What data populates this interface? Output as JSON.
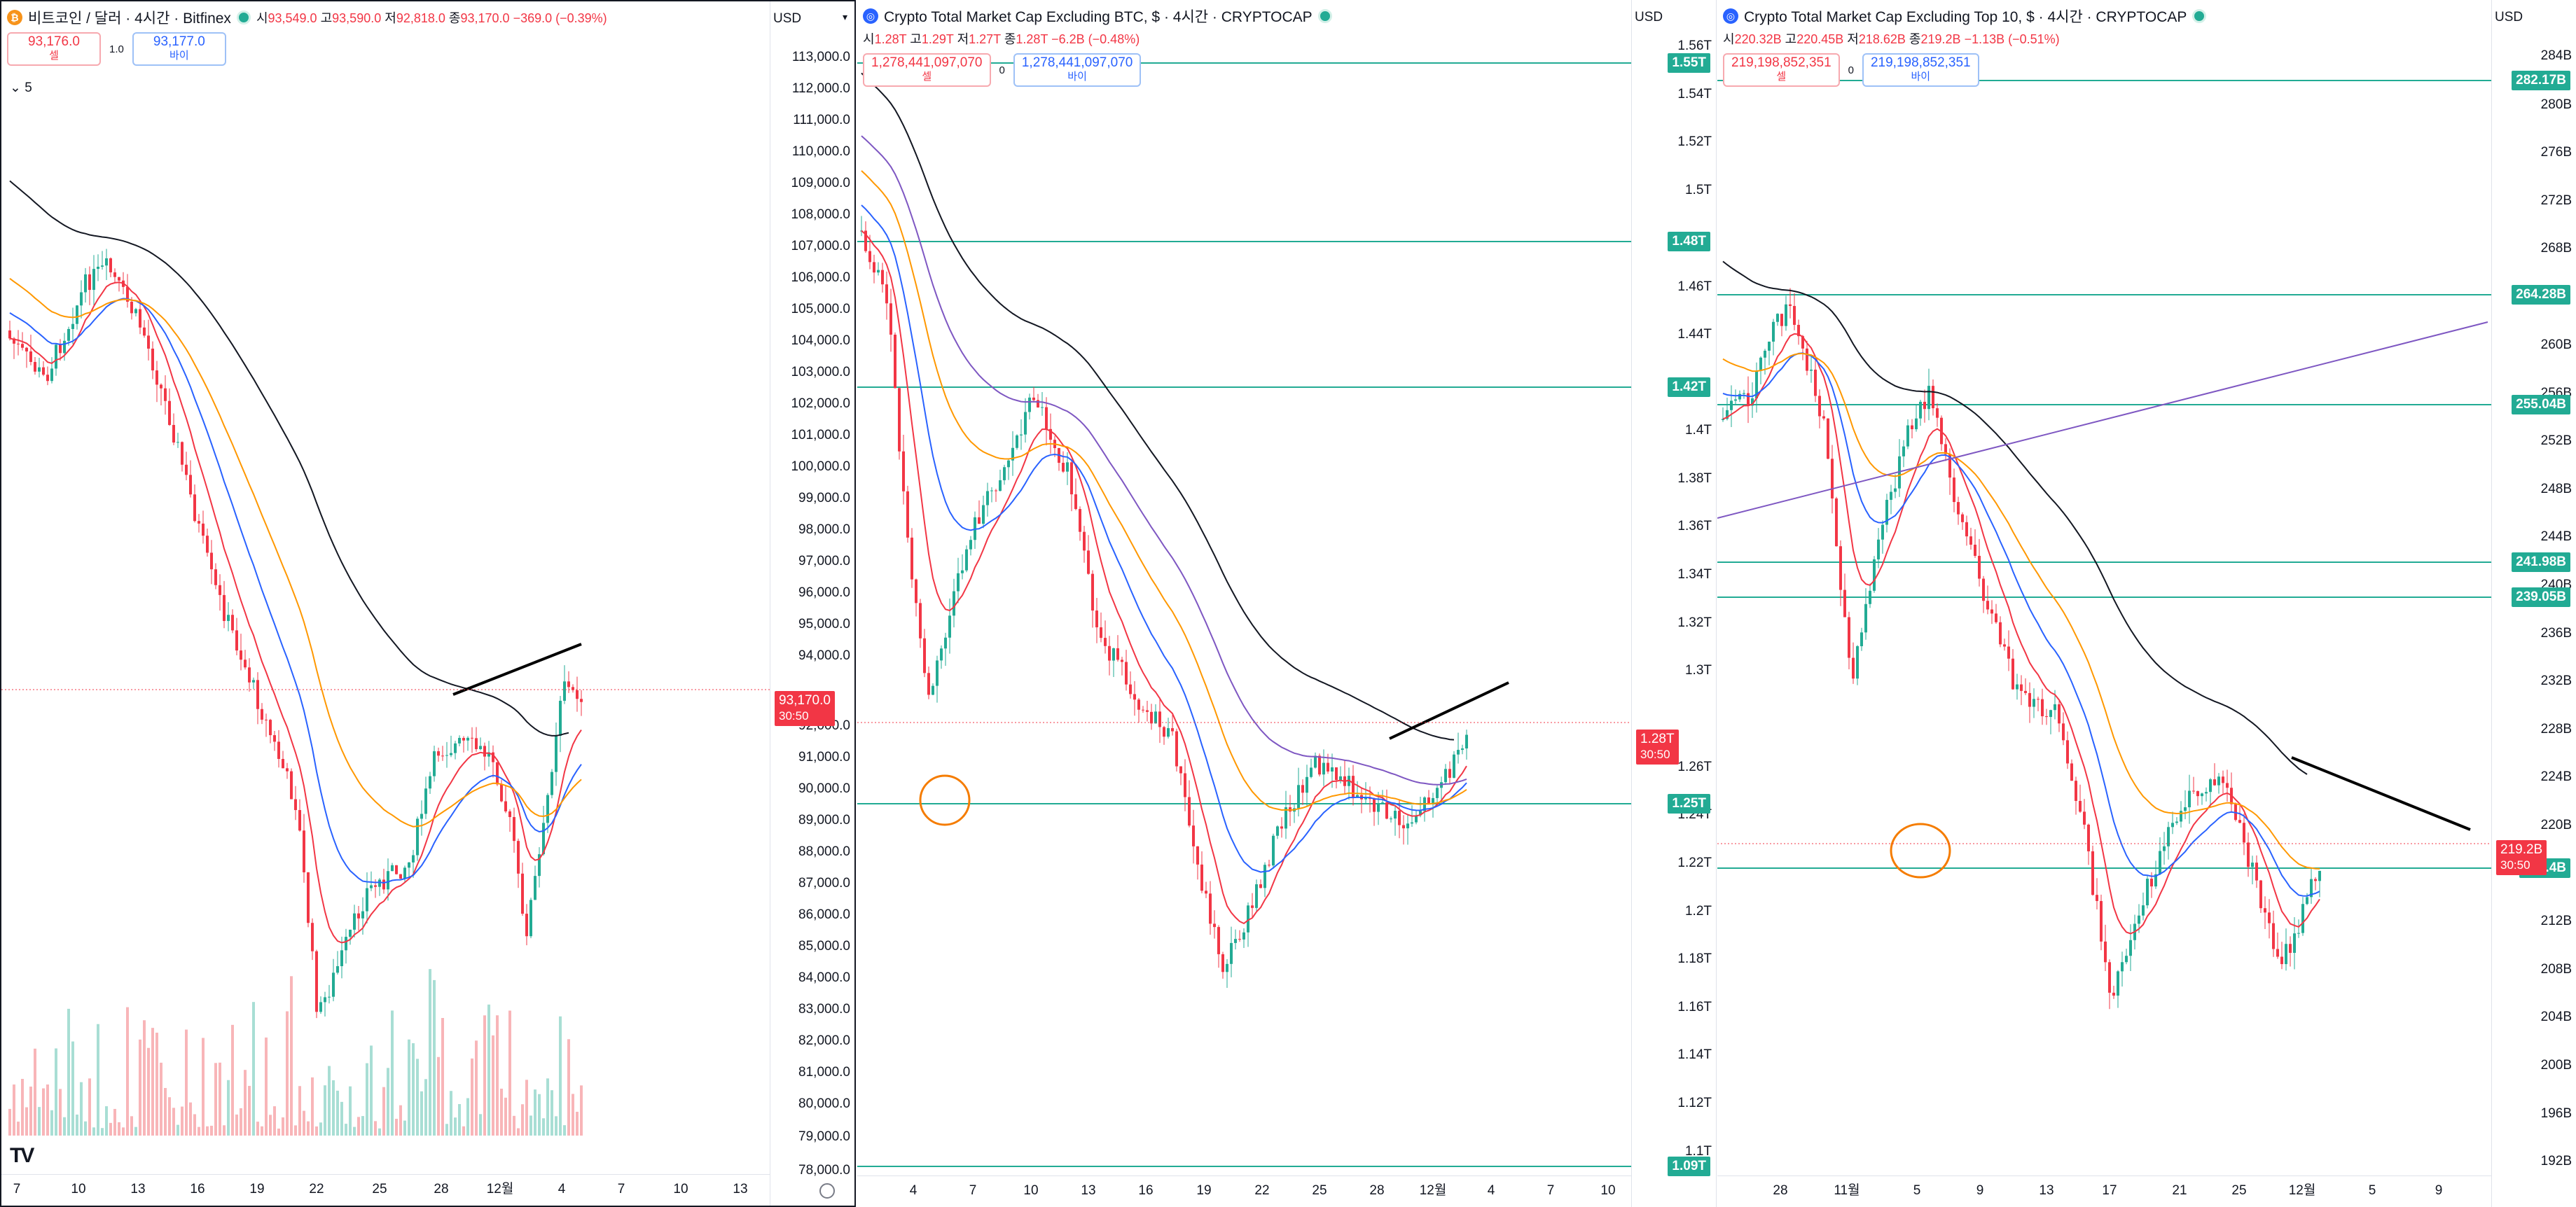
{
  "colors": {
    "up": "#22ab94",
    "down": "#f23645",
    "ema_red": "#f23645",
    "ema_blue": "#2962ff",
    "ema_orange": "#ff9800",
    "ema_black": "#131722",
    "ema_purple": "#7e57c2",
    "level": "#22ab94",
    "marker": "#f57c00"
  },
  "panels": [
    {
      "symbol_icon": "bitcoin-icon",
      "title": "비트코인 / 달러 · 4시간 · Bitfinex",
      "ohlc": {
        "o_label": "시",
        "o": "93,549.0",
        "h_label": "고",
        "h": "93,590.0",
        "l_label": "저",
        "l": "92,818.0",
        "c_label": "종",
        "c": "93,170.0",
        "change": "−369.0 (−0.39%)"
      },
      "sell": {
        "price": "93,176.0",
        "label": "셀"
      },
      "spread": "1.0",
      "buy": {
        "price": "93,177.0",
        "label": "바이"
      },
      "collapse_label": "5",
      "currency": "USD",
      "y_ticks": [
        "113,000.0",
        "112,000.0",
        "111,000.0",
        "110,000.0",
        "109,000.0",
        "108,000.0",
        "107,000.0",
        "106,000.0",
        "105,000.0",
        "104,000.0",
        "103,000.0",
        "102,000.0",
        "101,000.0",
        "100,000.0",
        "99,000.0",
        "98,000.0",
        "97,000.0",
        "96,000.0",
        "95,000.0",
        "94,000.0",
        "92,000.0",
        "91,000.0",
        "90,000.0",
        "89,000.0",
        "88,000.0",
        "87,000.0",
        "86,000.0",
        "85,000.0",
        "84,000.0",
        "83,000.0",
        "82,000.0",
        "81,000.0",
        "80,000.0",
        "79,000.0",
        "78,000.0"
      ],
      "price_tag": {
        "price": "93,170.0",
        "timer": "30:50"
      },
      "x_ticks": [
        "7",
        "10",
        "13",
        "16",
        "19",
        "22",
        "25",
        "28",
        "12월",
        "4",
        "7",
        "10",
        "13"
      ]
    },
    {
      "symbol_icon": "cryptocap-icon",
      "title": "Crypto Total Market Cap Excluding BTC, $ · 4시간 · CRYPTOCAP",
      "ohlc": {
        "o_label": "시",
        "o": "1.28T",
        "h_label": "고",
        "h": "1.29T",
        "l_label": "저",
        "l": "1.27T",
        "c_label": "종",
        "c": "1.28T",
        "change": "−6.2B (−0.48%)"
      },
      "sell": {
        "price": "1,278,441,097,070",
        "label": "셀"
      },
      "spread": "0",
      "buy": {
        "price": "1,278,441,097,070",
        "label": "바이"
      },
      "currency": "USD",
      "y_ticks": [
        "1.56T",
        "1.54T",
        "1.52T",
        "1.5T",
        "1.46T",
        "1.44T",
        "1.4T",
        "1.38T",
        "1.36T",
        "1.34T",
        "1.32T",
        "1.3T",
        "1.26T",
        "1.24T",
        "1.22T",
        "1.2T",
        "1.18T",
        "1.16T",
        "1.14T",
        "1.12T",
        "1.1T"
      ],
      "levels": [
        "1.55T",
        "1.48T",
        "1.42T",
        "1.25T",
        "1.09T"
      ],
      "price_tag": {
        "price": "1.28T",
        "timer": "30:50"
      },
      "x_ticks": [
        "4",
        "7",
        "10",
        "13",
        "16",
        "19",
        "22",
        "25",
        "28",
        "12월",
        "4",
        "7",
        "10"
      ]
    },
    {
      "symbol_icon": "cryptocap-icon",
      "title": "Crypto Total Market Cap Excluding Top 10, $ · 4시간 · CRYPTOCAP",
      "ohlc": {
        "o_label": "시",
        "o": "220.32B",
        "h_label": "고",
        "h": "220.45B",
        "l_label": "저",
        "l": "218.62B",
        "c_label": "종",
        "c": "219.2B",
        "change": "−1.13B (−0.51%)"
      },
      "sell": {
        "price": "219,198,852,351",
        "label": "셀"
      },
      "spread": "0",
      "buy": {
        "price": "219,198,852,351",
        "label": "바이"
      },
      "currency": "USD",
      "y_ticks": [
        "284B",
        "280B",
        "276B",
        "272B",
        "268B",
        "260B",
        "256B",
        "252B",
        "248B",
        "244B",
        "240B",
        "236B",
        "232B",
        "228B",
        "224B",
        "220B",
        "212B",
        "208B",
        "204B",
        "200B",
        "196B",
        "192B"
      ],
      "levels": [
        "282.17B",
        "264.28B",
        "255.04B",
        "241.98B",
        "239.05B",
        "218.4B"
      ],
      "price_tag": {
        "price": "219.2B",
        "timer": "30:50"
      },
      "x_ticks": [
        "28",
        "11월",
        "5",
        "9",
        "13",
        "17",
        "21",
        "25",
        "12월",
        "5",
        "9"
      ]
    }
  ]
}
